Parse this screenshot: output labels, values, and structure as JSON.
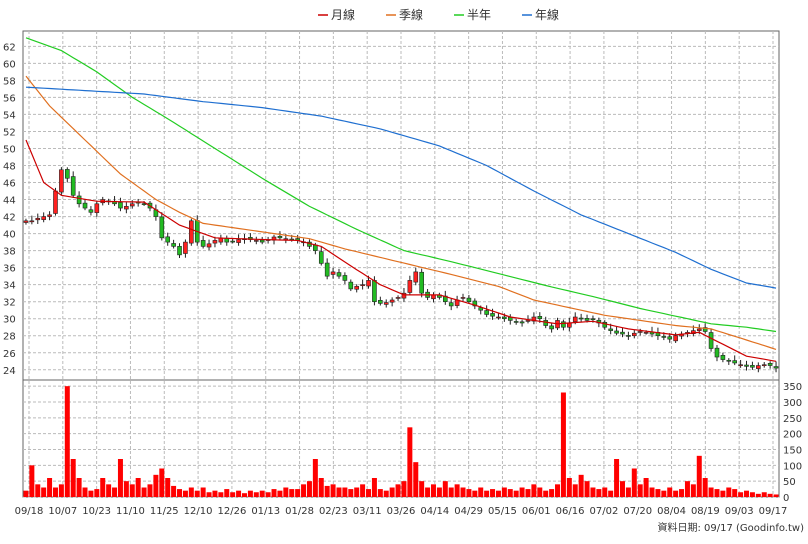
{
  "chart_data": {
    "type": "candlestick",
    "legend": [
      {
        "name": "月線",
        "color": "#cc0000"
      },
      {
        "name": "季線",
        "color": "#e07020"
      },
      {
        "name": "半年",
        "color": "#22cc22"
      },
      {
        "name": "年線",
        "color": "#1f6fd0"
      }
    ],
    "x_ticks": [
      "09/18",
      "10/07",
      "10/23",
      "11/10",
      "11/25",
      "12/10",
      "12/26",
      "01/13",
      "01/28",
      "02/23",
      "03/11",
      "03/26",
      "04/14",
      "04/29",
      "05/15",
      "06/01",
      "06/16",
      "07/02",
      "07/20",
      "08/04",
      "08/19",
      "09/03",
      "09/17"
    ],
    "price_axis": {
      "ticks": [
        24,
        26,
        28,
        30,
        32,
        34,
        36,
        38,
        40,
        42,
        44,
        46,
        48,
        50,
        52,
        54,
        56,
        58,
        60,
        62
      ],
      "ylim": [
        22.8,
        63.8
      ]
    },
    "volume_axis": {
      "ticks": [
        0,
        50,
        100,
        150,
        200,
        250,
        300,
        350
      ],
      "ylim": [
        0,
        360
      ]
    },
    "footer": "資料日期: 09/17  (Goodinfo.tw)",
    "price_anchors": [
      [
        0,
        41.5
      ],
      [
        1,
        41.5
      ],
      [
        2,
        41.8
      ],
      [
        3,
        42.0
      ],
      [
        4,
        42.2
      ],
      [
        5,
        45.0
      ],
      [
        6,
        47.5
      ],
      [
        7,
        46.5
      ],
      [
        8,
        44.5
      ],
      [
        9,
        43.5
      ],
      [
        10,
        43.0
      ],
      [
        11,
        42.5
      ],
      [
        12,
        43.5
      ],
      [
        13,
        44.0
      ],
      [
        14,
        43.8
      ],
      [
        15,
        43.5
      ],
      [
        16,
        43.0
      ],
      [
        17,
        43.2
      ],
      [
        18,
        43.5
      ],
      [
        19,
        43.6
      ],
      [
        20,
        43.5
      ],
      [
        21,
        43.0
      ],
      [
        22,
        42.0
      ],
      [
        23,
        39.5
      ],
      [
        24,
        39.0
      ],
      [
        25,
        38.5
      ],
      [
        26,
        37.5
      ],
      [
        27,
        39.0
      ],
      [
        28,
        41.5
      ],
      [
        29,
        39.0
      ],
      [
        30,
        38.5
      ],
      [
        31,
        38.8
      ],
      [
        32,
        39.2
      ],
      [
        33,
        39.5
      ],
      [
        34,
        39.0
      ],
      [
        35,
        39.1
      ],
      [
        36,
        39.3
      ],
      [
        37,
        39.4
      ],
      [
        38,
        39.3
      ],
      [
        39,
        39.2
      ],
      [
        40,
        39.0
      ],
      [
        41,
        39.3
      ],
      [
        42,
        39.6
      ],
      [
        43,
        39.5
      ],
      [
        44,
        39.4
      ],
      [
        45,
        39.3
      ],
      [
        46,
        39.2
      ],
      [
        47,
        39.0
      ],
      [
        48,
        38.5
      ],
      [
        49,
        38.0
      ],
      [
        50,
        36.5
      ],
      [
        51,
        35.0
      ],
      [
        52,
        35.5
      ],
      [
        53,
        35.0
      ],
      [
        54,
        34.5
      ],
      [
        55,
        33.5
      ],
      [
        56,
        33.8
      ],
      [
        57,
        34.0
      ],
      [
        58,
        34.5
      ],
      [
        59,
        32.0
      ],
      [
        60,
        31.8
      ],
      [
        61,
        31.9
      ],
      [
        62,
        32.2
      ],
      [
        63,
        32.5
      ],
      [
        64,
        33.0
      ],
      [
        65,
        34.5
      ],
      [
        66,
        35.5
      ],
      [
        67,
        33.0
      ],
      [
        68,
        32.5
      ],
      [
        69,
        32.8
      ],
      [
        70,
        32.5
      ],
      [
        71,
        32.0
      ],
      [
        72,
        31.5
      ],
      [
        73,
        32.2
      ],
      [
        74,
        32.5
      ],
      [
        75,
        32.0
      ],
      [
        76,
        31.5
      ],
      [
        77,
        31.0
      ],
      [
        78,
        30.5
      ],
      [
        79,
        30.3
      ],
      [
        80,
        30.2
      ],
      [
        81,
        30.0
      ],
      [
        82,
        29.8
      ],
      [
        83,
        29.6
      ],
      [
        84,
        29.5
      ],
      [
        85,
        29.8
      ],
      [
        86,
        30.2
      ],
      [
        87,
        30.0
      ],
      [
        88,
        29.2
      ],
      [
        89,
        28.8
      ],
      [
        90,
        29.8
      ],
      [
        91,
        29.0
      ],
      [
        92,
        29.5
      ],
      [
        93,
        30.2
      ],
      [
        94,
        30.0
      ],
      [
        95,
        29.8
      ],
      [
        96,
        29.9
      ],
      [
        97,
        29.5
      ],
      [
        98,
        29.0
      ],
      [
        99,
        28.6
      ],
      [
        100,
        28.3
      ],
      [
        101,
        28.2
      ],
      [
        102,
        28.0
      ],
      [
        103,
        28.3
      ],
      [
        104,
        28.5
      ],
      [
        105,
        28.4
      ],
      [
        106,
        28.2
      ],
      [
        107,
        28.0
      ],
      [
        108,
        27.8
      ],
      [
        109,
        27.6
      ],
      [
        110,
        28.0
      ],
      [
        111,
        28.2
      ],
      [
        112,
        28.4
      ],
      [
        113,
        28.6
      ],
      [
        114,
        28.8
      ],
      [
        115,
        28.5
      ],
      [
        116,
        26.5
      ],
      [
        117,
        25.5
      ],
      [
        118,
        25.2
      ],
      [
        119,
        25.0
      ],
      [
        120,
        24.8
      ],
      [
        121,
        24.6
      ],
      [
        122,
        24.4
      ],
      [
        123,
        24.3
      ],
      [
        124,
        24.5
      ],
      [
        125,
        24.6
      ],
      [
        126,
        24.5
      ],
      [
        127,
        24.2
      ]
    ],
    "volume_anchors": [
      [
        0,
        20
      ],
      [
        1,
        100
      ],
      [
        2,
        40
      ],
      [
        3,
        30
      ],
      [
        4,
        60
      ],
      [
        5,
        30
      ],
      [
        6,
        40
      ],
      [
        7,
        350
      ],
      [
        8,
        120
      ],
      [
        9,
        60
      ],
      [
        10,
        30
      ],
      [
        11,
        20
      ],
      [
        12,
        25
      ],
      [
        13,
        60
      ],
      [
        14,
        40
      ],
      [
        15,
        30
      ],
      [
        16,
        120
      ],
      [
        17,
        50
      ],
      [
        18,
        40
      ],
      [
        19,
        60
      ],
      [
        20,
        30
      ],
      [
        21,
        40
      ],
      [
        22,
        70
      ],
      [
        23,
        90
      ],
      [
        24,
        60
      ],
      [
        25,
        35
      ],
      [
        26,
        25
      ],
      [
        27,
        20
      ],
      [
        28,
        30
      ],
      [
        29,
        20
      ],
      [
        30,
        30
      ],
      [
        31,
        15
      ],
      [
        32,
        20
      ],
      [
        33,
        15
      ],
      [
        34,
        25
      ],
      [
        35,
        15
      ],
      [
        36,
        20
      ],
      [
        37,
        12
      ],
      [
        38,
        20
      ],
      [
        39,
        15
      ],
      [
        40,
        20
      ],
      [
        41,
        15
      ],
      [
        42,
        25
      ],
      [
        43,
        20
      ],
      [
        44,
        30
      ],
      [
        45,
        25
      ],
      [
        46,
        25
      ],
      [
        47,
        40
      ],
      [
        48,
        50
      ],
      [
        49,
        120
      ],
      [
        50,
        60
      ],
      [
        51,
        35
      ],
      [
        52,
        40
      ],
      [
        53,
        30
      ],
      [
        54,
        30
      ],
      [
        55,
        25
      ],
      [
        56,
        30
      ],
      [
        57,
        40
      ],
      [
        58,
        25
      ],
      [
        59,
        60
      ],
      [
        60,
        25
      ],
      [
        61,
        20
      ],
      [
        62,
        30
      ],
      [
        63,
        40
      ],
      [
        64,
        50
      ],
      [
        65,
        220
      ],
      [
        66,
        110
      ],
      [
        67,
        50
      ],
      [
        68,
        30
      ],
      [
        69,
        40
      ],
      [
        70,
        30
      ],
      [
        71,
        50
      ],
      [
        72,
        30
      ],
      [
        73,
        40
      ],
      [
        74,
        30
      ],
      [
        75,
        25
      ],
      [
        76,
        20
      ],
      [
        77,
        30
      ],
      [
        78,
        20
      ],
      [
        79,
        25
      ],
      [
        80,
        20
      ],
      [
        81,
        30
      ],
      [
        82,
        25
      ],
      [
        83,
        20
      ],
      [
        84,
        30
      ],
      [
        85,
        25
      ],
      [
        86,
        40
      ],
      [
        87,
        30
      ],
      [
        88,
        20
      ],
      [
        89,
        25
      ],
      [
        90,
        40
      ],
      [
        91,
        330
      ],
      [
        92,
        60
      ],
      [
        93,
        40
      ],
      [
        94,
        70
      ],
      [
        95,
        50
      ],
      [
        96,
        30
      ],
      [
        97,
        25
      ],
      [
        98,
        30
      ],
      [
        99,
        20
      ],
      [
        100,
        120
      ],
      [
        101,
        50
      ],
      [
        102,
        30
      ],
      [
        103,
        90
      ],
      [
        104,
        40
      ],
      [
        105,
        60
      ],
      [
        106,
        30
      ],
      [
        107,
        25
      ],
      [
        108,
        20
      ],
      [
        109,
        30
      ],
      [
        110,
        20
      ],
      [
        111,
        25
      ],
      [
        112,
        50
      ],
      [
        113,
        40
      ],
      [
        114,
        130
      ],
      [
        115,
        60
      ],
      [
        116,
        30
      ],
      [
        117,
        25
      ],
      [
        118,
        20
      ],
      [
        119,
        30
      ],
      [
        120,
        25
      ],
      [
        121,
        15
      ],
      [
        122,
        20
      ],
      [
        123,
        15
      ],
      [
        124,
        10
      ],
      [
        125,
        15
      ],
      [
        126,
        10
      ],
      [
        127,
        8
      ]
    ],
    "moving_averages": [
      {
        "name": "月線",
        "color": "#cc0000",
        "points": [
          [
            0,
            51
          ],
          [
            3,
            46
          ],
          [
            6,
            44.5
          ],
          [
            12,
            43.8
          ],
          [
            20,
            43.7
          ],
          [
            26,
            41
          ],
          [
            32,
            39.5
          ],
          [
            40,
            39.3
          ],
          [
            46,
            39.2
          ],
          [
            50,
            38.5
          ],
          [
            55,
            36.2
          ],
          [
            60,
            34
          ],
          [
            64,
            32.8
          ],
          [
            70,
            32.8
          ],
          [
            76,
            31.6
          ],
          [
            82,
            30.2
          ],
          [
            90,
            29.4
          ],
          [
            96,
            29.7
          ],
          [
            102,
            28.8
          ],
          [
            110,
            28.1
          ],
          [
            114,
            28.4
          ],
          [
            118,
            27
          ],
          [
            122,
            25.6
          ],
          [
            127,
            25
          ]
        ]
      },
      {
        "name": "季線",
        "color": "#e07020",
        "points": [
          [
            0,
            58.5
          ],
          [
            4,
            55
          ],
          [
            10,
            51
          ],
          [
            16,
            47
          ],
          [
            22,
            44
          ],
          [
            26,
            42.5
          ],
          [
            30,
            41.2
          ],
          [
            36,
            40.6
          ],
          [
            42,
            40
          ],
          [
            48,
            39.4
          ],
          [
            54,
            38.2
          ],
          [
            60,
            37.2
          ],
          [
            66,
            36.2
          ],
          [
            72,
            35.2
          ],
          [
            80,
            33.8
          ],
          [
            86,
            32.2
          ],
          [
            92,
            31.3
          ],
          [
            98,
            30.4
          ],
          [
            104,
            29.8
          ],
          [
            110,
            29.2
          ],
          [
            116,
            28.8
          ],
          [
            122,
            27.5
          ],
          [
            127,
            26.4
          ]
        ]
      },
      {
        "name": "半年",
        "color": "#22cc22",
        "points": [
          [
            0,
            63
          ],
          [
            6,
            61.5
          ],
          [
            12,
            59
          ],
          [
            18,
            56
          ],
          [
            24,
            53.5
          ],
          [
            32,
            50
          ],
          [
            40,
            46.5
          ],
          [
            48,
            43.2
          ],
          [
            56,
            40.5
          ],
          [
            64,
            38
          ],
          [
            72,
            36.7
          ],
          [
            80,
            35.3
          ],
          [
            88,
            33.9
          ],
          [
            96,
            32.6
          ],
          [
            104,
            31.2
          ],
          [
            110,
            30.3
          ],
          [
            116,
            29.4
          ],
          [
            122,
            29
          ],
          [
            127,
            28.5
          ]
        ]
      },
      {
        "name": "年線",
        "color": "#1f6fd0",
        "points": [
          [
            0,
            57.2
          ],
          [
            10,
            56.8
          ],
          [
            20,
            56.4
          ],
          [
            30,
            55.5
          ],
          [
            40,
            54.8
          ],
          [
            50,
            53.8
          ],
          [
            60,
            52.3
          ],
          [
            70,
            50.3
          ],
          [
            78,
            48
          ],
          [
            86,
            45
          ],
          [
            94,
            42.2
          ],
          [
            102,
            40
          ],
          [
            110,
            37.8
          ],
          [
            116,
            35.8
          ],
          [
            122,
            34.2
          ],
          [
            127,
            33.6
          ]
        ]
      }
    ]
  }
}
